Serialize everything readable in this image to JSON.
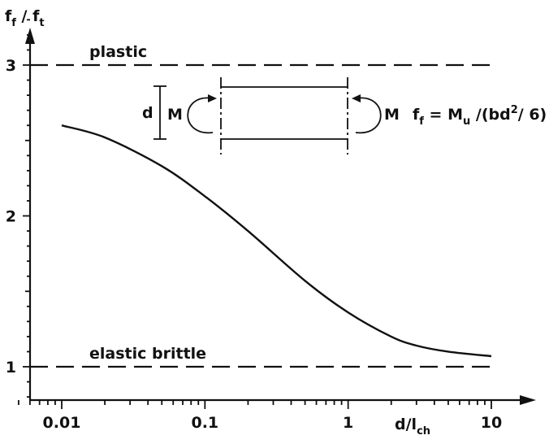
{
  "chart_data": {
    "type": "line",
    "xscale": "log",
    "xlim": [
      0.005,
      14
    ],
    "ylim": [
      0.8,
      3.4
    ],
    "x_ticks": [
      0.01,
      0.1,
      1,
      10
    ],
    "x_tick_labels": [
      "0.01",
      "0.1",
      "1",
      "10"
    ],
    "y_ticks": [
      1,
      2,
      3
    ],
    "y_tick_labels": [
      "1",
      "2",
      "3"
    ],
    "xlabel": "d/l",
    "xlabel_sub": "ch",
    "ylabel": {
      "f1": "f",
      "s1": "f",
      "mid": " / ",
      "f2": "f",
      "s2": "t"
    },
    "grid": false,
    "series": [
      {
        "x": [
          0.01,
          0.02,
          0.05,
          0.1,
          0.2,
          0.5,
          1,
          2,
          3,
          5,
          10
        ],
        "y": [
          2.6,
          2.52,
          2.33,
          2.13,
          1.9,
          1.57,
          1.36,
          1.2,
          1.14,
          1.1,
          1.07
        ]
      }
    ],
    "reference_lines": [
      {
        "y": 3,
        "label": "plastic"
      },
      {
        "y": 1,
        "label": "elastic brittle"
      }
    ]
  },
  "inset": {
    "d_label": "d",
    "moment_label": "M",
    "formula": {
      "a": "f",
      "a_sub": "f",
      "b": " = M",
      "b_sub": "u",
      "c": " /(bd",
      "c_sup": "2",
      "d": "/ 6)"
    }
  }
}
